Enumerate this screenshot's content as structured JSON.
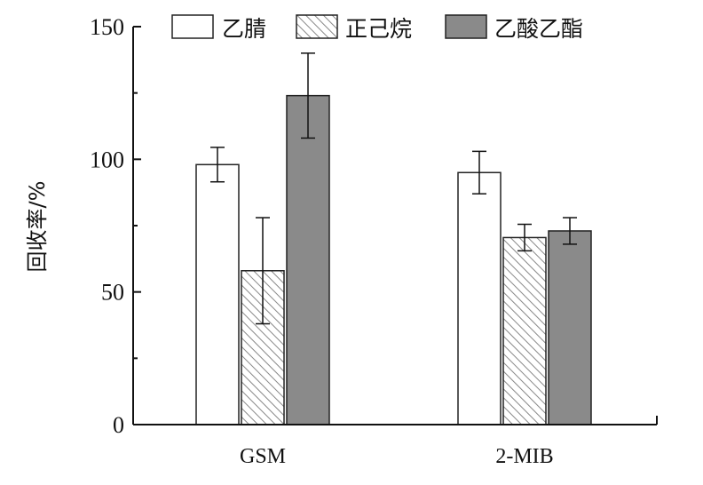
{
  "chart_data": {
    "type": "bar",
    "categories": [
      "GSM",
      "2-MIB"
    ],
    "ylabel": "回收率/%",
    "xlabel": "",
    "ylim": [
      0,
      150
    ],
    "yticks": [
      0,
      50,
      100,
      150
    ],
    "legend_position": "top",
    "series": [
      {
        "name": "乙腈",
        "values": [
          98,
          95
        ],
        "errors": [
          6.5,
          8
        ],
        "fill": "white",
        "color": "#ffffff"
      },
      {
        "name": "正己烷",
        "values": [
          58,
          70.5
        ],
        "errors": [
          20,
          5
        ],
        "fill": "hatched",
        "color": "#bbbbbb"
      },
      {
        "name": "乙酸乙酯",
        "values": [
          124,
          73
        ],
        "errors": [
          16,
          5
        ],
        "fill": "solid",
        "color": "#8a8a8a"
      }
    ]
  }
}
